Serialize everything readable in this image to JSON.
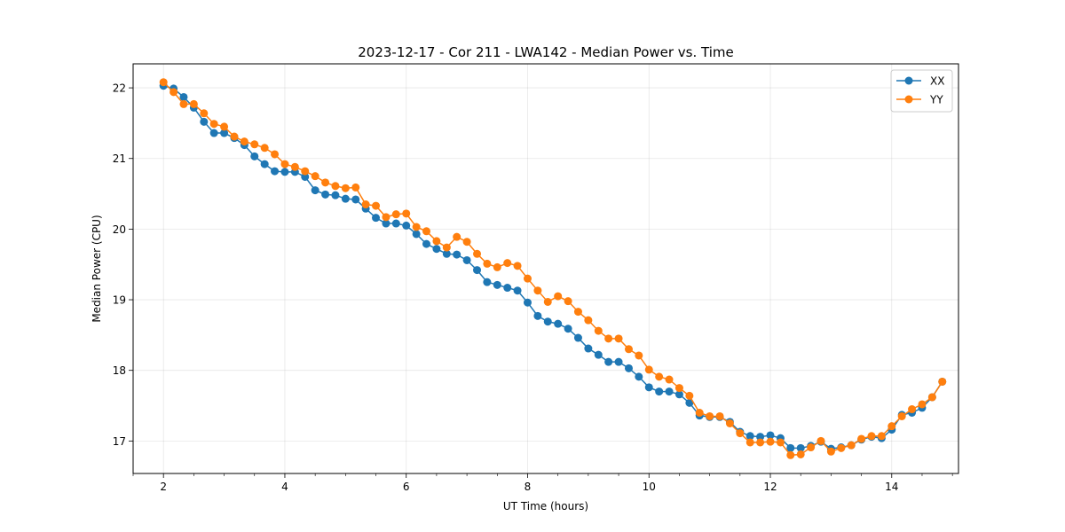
{
  "chart_data": {
    "type": "line",
    "title": "2023-12-17 - Cor 211 - LWA142 - Median Power vs. Time",
    "xlabel": "UT Time (hours)",
    "ylabel": "Median Power (CPU)",
    "xlim": [
      1.5,
      15.1
    ],
    "ylim": [
      16.54,
      22.34
    ],
    "xticks": [
      2,
      4,
      6,
      8,
      10,
      12,
      14
    ],
    "xtick_labels": [
      "2",
      "4",
      "6",
      "8",
      "10",
      "12",
      "14"
    ],
    "yticks": [
      17,
      18,
      19,
      20,
      21,
      22
    ],
    "ytick_labels": [
      "17",
      "18",
      "19",
      "20",
      "21",
      "22"
    ],
    "grid": true,
    "legend_position": "top-right",
    "x": [
      2.0,
      2.167,
      2.333,
      2.5,
      2.667,
      2.833,
      3.0,
      3.167,
      3.333,
      3.5,
      3.667,
      3.833,
      4.0,
      4.167,
      4.333,
      4.5,
      4.667,
      4.833,
      5.0,
      5.167,
      5.333,
      5.5,
      5.667,
      5.833,
      6.0,
      6.167,
      6.333,
      6.5,
      6.667,
      6.833,
      7.0,
      7.167,
      7.333,
      7.5,
      7.667,
      7.833,
      8.0,
      8.167,
      8.333,
      8.5,
      8.667,
      8.833,
      9.0,
      9.167,
      9.333,
      9.5,
      9.667,
      9.833,
      10.0,
      10.167,
      10.333,
      10.5,
      10.667,
      10.833,
      11.0,
      11.167,
      11.333,
      11.5,
      11.667,
      11.833,
      12.0,
      12.167,
      12.333,
      12.5,
      12.667,
      12.833,
      13.0,
      13.167,
      13.333,
      13.5,
      13.667,
      13.833,
      14.0,
      14.167,
      14.333,
      14.5,
      14.667,
      14.833
    ],
    "series": [
      {
        "name": "XX",
        "color": "#1f77b4",
        "values": [
          22.03,
          21.99,
          21.87,
          21.72,
          21.52,
          21.36,
          21.36,
          21.29,
          21.19,
          21.03,
          20.92,
          20.82,
          20.81,
          20.81,
          20.74,
          20.55,
          20.49,
          20.48,
          20.43,
          20.42,
          20.29,
          20.16,
          20.08,
          20.08,
          20.05,
          19.93,
          19.79,
          19.72,
          19.65,
          19.64,
          19.56,
          19.42,
          19.25,
          19.21,
          19.17,
          19.13,
          18.96,
          18.77,
          18.69,
          18.66,
          18.59,
          18.46,
          18.31,
          18.22,
          18.12,
          18.12,
          18.03,
          17.91,
          17.76,
          17.7,
          17.7,
          17.66,
          17.54,
          17.36,
          17.34,
          17.34,
          17.27,
          17.13,
          17.07,
          17.06,
          17.08,
          17.04,
          16.9,
          16.9,
          16.93,
          16.99,
          16.89,
          16.91,
          16.94,
          17.02,
          17.06,
          17.04,
          17.16,
          17.37,
          17.4,
          17.47,
          17.62,
          17.84
        ]
      },
      {
        "name": "YY",
        "color": "#ff7f0e",
        "values": [
          22.08,
          21.94,
          21.77,
          21.77,
          21.64,
          21.49,
          21.45,
          21.31,
          21.24,
          21.2,
          21.15,
          21.06,
          20.92,
          20.88,
          20.82,
          20.75,
          20.66,
          20.61,
          20.58,
          20.59,
          20.35,
          20.33,
          20.17,
          20.21,
          20.22,
          20.03,
          19.97,
          19.83,
          19.74,
          19.89,
          19.82,
          19.65,
          19.51,
          19.46,
          19.52,
          19.48,
          19.3,
          19.13,
          18.97,
          19.05,
          18.98,
          18.83,
          18.71,
          18.56,
          18.45,
          18.45,
          18.3,
          18.21,
          18.01,
          17.91,
          17.87,
          17.75,
          17.64,
          17.4,
          17.35,
          17.35,
          17.25,
          17.11,
          16.98,
          16.98,
          16.99,
          16.98,
          16.8,
          16.81,
          16.91,
          17.0,
          16.85,
          16.9,
          16.94,
          17.03,
          17.07,
          17.07,
          17.21,
          17.35,
          17.45,
          17.52,
          17.62,
          17.84
        ]
      }
    ]
  }
}
